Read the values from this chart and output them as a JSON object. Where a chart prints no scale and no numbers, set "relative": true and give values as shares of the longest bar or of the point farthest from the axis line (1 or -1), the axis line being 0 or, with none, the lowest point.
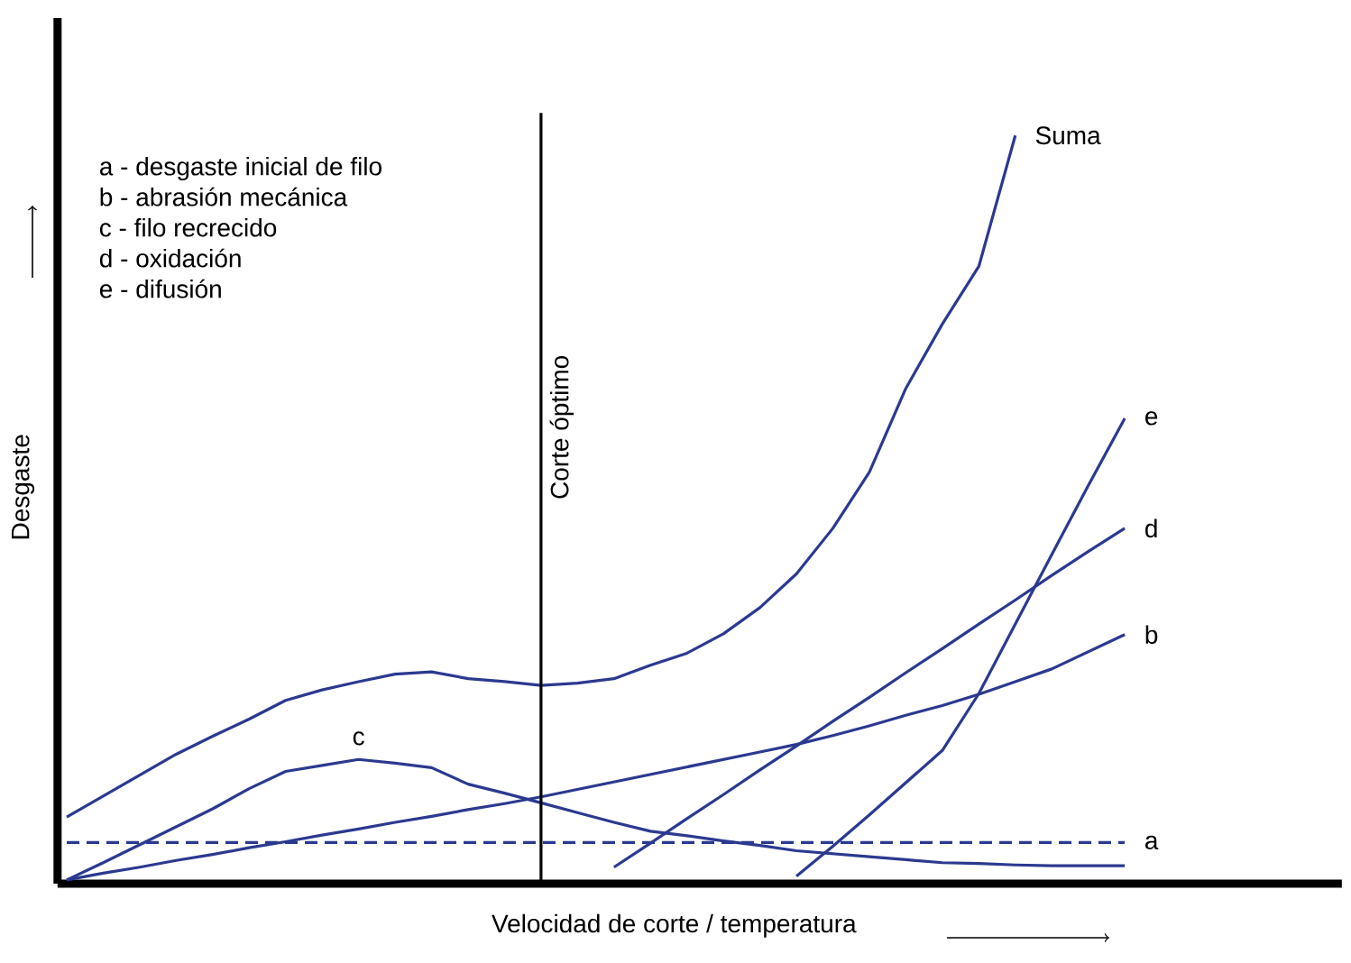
{
  "chart_data": {
    "type": "line",
    "relative": true,
    "xlabel": "Velocidad de corte / temperatura",
    "ylabel": "Desgaste",
    "marker": "none",
    "categories": [
      null,
      null,
      null,
      null,
      null,
      null,
      null,
      null,
      null,
      null,
      null,
      null,
      null,
      null,
      null,
      null,
      null,
      null,
      null,
      null,
      null,
      null,
      null,
      null,
      null,
      null,
      null,
      null,
      null,
      null
    ],
    "annotations": [
      "a - desgaste inicial de filo",
      "b - abrasión mecánica",
      "c - filo recrecido",
      "d - oxidación",
      "e - difusión",
      "Corte óptimo"
    ],
    "series": [
      {
        "name": "a",
        "color": "#2b3990",
        "line_style": "dashed",
        "values": [
          0.055,
          0.055,
          0.055,
          0.055,
          0.055,
          0.055,
          0.055,
          0.055,
          0.055,
          0.055,
          0.055,
          0.055,
          0.055,
          0.055,
          0.055,
          0.055,
          0.055,
          0.055,
          0.055,
          0.055,
          0.055,
          0.055,
          0.055,
          0.055,
          0.055,
          0.055,
          0.055,
          0.055,
          0.055,
          0.055
        ]
      },
      {
        "name": "b",
        "color": "#2b3990",
        "values": [
          0.005,
          0.014,
          0.022,
          0.031,
          0.039,
          0.048,
          0.056,
          0.065,
          0.073,
          0.082,
          0.09,
          0.099,
          0.107,
          0.116,
          0.126,
          0.136,
          0.146,
          0.156,
          0.166,
          0.176,
          0.186,
          0.198,
          0.211,
          0.225,
          0.238,
          0.253,
          0.27,
          0.287,
          0.31,
          0.333
        ]
      },
      {
        "name": "c",
        "color": "#2b3990",
        "values": [
          0.005,
          0.028,
          0.052,
          0.076,
          0.1,
          0.127,
          0.15,
          0.158,
          0.166,
          0.161,
          0.155,
          0.133,
          0.121,
          0.108,
          0.095,
          0.082,
          0.07,
          0.064,
          0.057,
          0.051,
          0.044,
          0.04,
          0.036,
          0.032,
          0.028,
          0.027,
          0.025,
          0.024,
          0.024,
          0.024
        ]
      },
      {
        "name": "d",
        "color": "#2b3990",
        "values": [
          null,
          null,
          null,
          null,
          null,
          null,
          null,
          null,
          null,
          null,
          null,
          null,
          null,
          null,
          null,
          0.022,
          0.054,
          0.087,
          0.119,
          0.152,
          0.184,
          0.217,
          0.249,
          0.282,
          0.314,
          0.347,
          0.379,
          0.412,
          0.444,
          0.475
        ]
      },
      {
        "name": "e",
        "color": "#2b3990",
        "values": [
          null,
          null,
          null,
          null,
          null,
          null,
          null,
          null,
          null,
          null,
          null,
          null,
          null,
          null,
          null,
          null,
          null,
          null,
          null,
          null,
          0.01,
          0.05,
          0.092,
          0.135,
          0.178,
          0.254,
          0.347,
          0.44,
          0.532,
          0.622
        ]
      },
      {
        "name": "Suma",
        "color": "#2b3990",
        "values": [
          0.089,
          0.117,
          0.145,
          0.173,
          0.197,
          0.22,
          0.245,
          0.259,
          0.27,
          0.28,
          0.283,
          0.274,
          0.27,
          0.265,
          0.268,
          0.274,
          0.292,
          0.308,
          0.334,
          0.369,
          0.414,
          0.475,
          0.55,
          0.662,
          0.748,
          0.825,
          1.0,
          null,
          null,
          null
        ]
      }
    ]
  }
}
